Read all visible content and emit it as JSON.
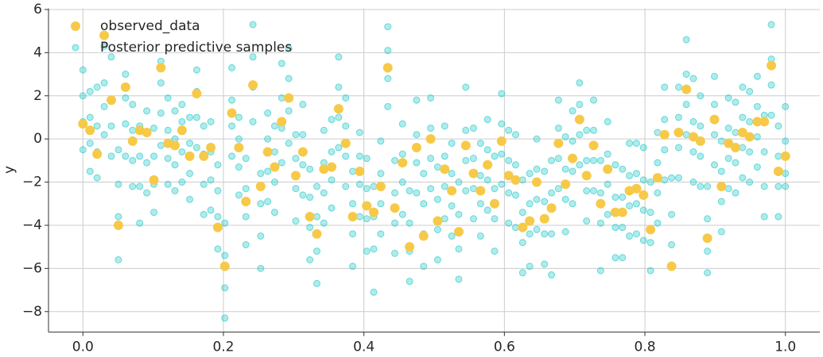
{
  "chart_data": {
    "type": "scatter",
    "ylabel": "y",
    "xlim": [
      -0.049,
      1.049
    ],
    "ylim": [
      -8.95,
      6.05
    ],
    "xticks": [
      {
        "value": 0,
        "label": "0.0"
      },
      0.2,
      0.4,
      0.6,
      0.8,
      {
        "value": 1,
        "label": "1.0"
      }
    ],
    "yticks": [
      {
        "value": -8,
        "label": "−8"
      },
      {
        "value": -6,
        "label": "−6"
      },
      {
        "value": -4,
        "label": "−4"
      },
      {
        "value": -2,
        "label": "−2"
      },
      0,
      2,
      4,
      6
    ],
    "grid": true,
    "legend": "upper left",
    "x": [
      0,
      0.0101,
      0.0202,
      0.0303,
      0.0404,
      0.0505,
      0.0606,
      0.0707,
      0.0808,
      0.0909,
      0.101,
      0.111,
      0.121,
      0.131,
      0.141,
      0.152,
      0.162,
      0.172,
      0.182,
      0.192,
      0.202,
      0.212,
      0.222,
      0.232,
      0.242,
      0.253,
      0.263,
      0.273,
      0.283,
      0.293,
      0.303,
      0.313,
      0.323,
      0.333,
      0.343,
      0.354,
      0.364,
      0.374,
      0.384,
      0.394,
      0.404,
      0.414,
      0.424,
      0.434,
      0.444,
      0.455,
      0.465,
      0.475,
      0.485,
      0.495,
      0.505,
      0.515,
      0.525,
      0.535,
      0.545,
      0.556,
      0.566,
      0.576,
      0.586,
      0.596,
      0.606,
      0.616,
      0.626,
      0.636,
      0.646,
      0.657,
      0.667,
      0.677,
      0.687,
      0.697,
      0.707,
      0.717,
      0.727,
      0.737,
      0.747,
      0.758,
      0.768,
      0.778,
      0.788,
      0.798,
      0.808,
      0.818,
      0.828,
      0.838,
      0.848,
      0.859,
      0.869,
      0.879,
      0.889,
      0.899,
      0.909,
      0.919,
      0.929,
      0.939,
      0.949,
      0.96,
      0.97,
      0.98,
      0.99,
      1
    ],
    "series": [
      {
        "name": "observed_data",
        "color": "#f7c948",
        "values": [
          0.7,
          0.4,
          -0.7,
          4.8,
          1.8,
          -4.0,
          2.4,
          -0.1,
          0.4,
          0.3,
          -1.9,
          3.3,
          -0.2,
          -0.3,
          0.4,
          -0.8,
          2.1,
          -0.8,
          -0.4,
          -4.1,
          -5.9,
          1.2,
          -0.4,
          -2.9,
          2.5,
          -2.2,
          -0.6,
          -1.3,
          0.8,
          1.9,
          -1.7,
          -0.6,
          -3.6,
          -4.4,
          -1.4,
          -1.3,
          1.4,
          -0.2,
          -3.6,
          -1.5,
          -3.1,
          -3.4,
          -2.2,
          3.3,
          -3.2,
          -1.1,
          -5.0,
          -0.4,
          -4.5,
          0,
          -3.8,
          -1.4,
          -2.4,
          -4.3,
          -0.3,
          -1.6,
          -2.4,
          -1.2,
          -3.0,
          -0.1,
          -1.7,
          -1.9,
          -4.1,
          -3.8,
          -2.0,
          -3.7,
          -3.2,
          -0.2,
          -2.1,
          -0.9,
          0.9,
          -1.7,
          -0.3,
          -3.0,
          -1.4,
          -3.4,
          -3.4,
          -2.4,
          -2.3,
          -2.6,
          -4.2,
          -1.8,
          0.2,
          -5.9,
          0.3,
          2.3,
          0.1,
          -0.1,
          -4.6,
          0.9,
          -2.2,
          -0.2,
          -0.4,
          0.3,
          0.1,
          0.8,
          0.8,
          3.4,
          -1.5,
          -0.8
        ]
      },
      {
        "name": "Posterior predictive samples",
        "color": "#1cc6c6",
        "values": [
          [
            -0.5,
            0.8,
            2,
            3.2
          ],
          [
            -1.5,
            -0.2,
            1,
            2.2
          ],
          [
            -1.8,
            -0.6,
            0.6,
            2.4
          ],
          [
            0.2,
            1.5,
            2.6,
            4.3
          ],
          [
            -0.8,
            0.6,
            1.8,
            3.8
          ],
          [
            -5.6,
            -3.6,
            -2.1,
            -0.5
          ],
          [
            -0.8,
            0.7,
            1.9,
            3
          ],
          [
            -2.2,
            -1,
            0.4,
            1.6
          ],
          [
            -3.9,
            -2.2,
            -0.8,
            0.6
          ],
          [
            -2.5,
            -1.1,
            0.3,
            1.3
          ],
          [
            -3.4,
            -2.1,
            -0.8,
            0.5
          ],
          [
            -0.3,
            1.2,
            2.6,
            3.6
          ],
          [
            -2.1,
            -0.9,
            0.4,
            1.9
          ],
          [
            -2.4,
            -1.2,
            0,
            1.3
          ],
          [
            -2,
            -0.6,
            0.8,
            1.6
          ],
          [
            -2.8,
            -1.6,
            -0.2,
            1
          ],
          [
            -0.4,
            1,
            2.2,
            3.2
          ],
          [
            -3.5,
            -2.1,
            -0.7,
            0.6
          ],
          [
            -3.3,
            -1.9,
            -0.6,
            0.8
          ],
          [
            -5.1,
            -3.6,
            -2.4,
            -1.2
          ],
          [
            -8.3,
            -6.9,
            -5.4,
            -3.9
          ],
          [
            -0.8,
            0.6,
            1.8,
            3.3
          ],
          [
            -2.6,
            -1.3,
            0,
            1
          ],
          [
            -4.9,
            -3.6,
            -2.3,
            -0.9
          ],
          [
            0.8,
            2.4,
            3.8,
            5.3
          ],
          [
            -6,
            -4.5,
            -3,
            -1.6
          ],
          [
            -2.9,
            -1.5,
            0,
            1.2
          ],
          [
            -3.4,
            -2,
            -0.6,
            0.6
          ],
          [
            -1.1,
            0.5,
            1.9,
            3.5
          ],
          [
            -0.2,
            1.3,
            2.8,
            4.2
          ],
          [
            -3.8,
            -2.3,
            -0.9,
            0.2
          ],
          [
            -2.6,
            -1.2,
            0.2,
            1.6
          ],
          [
            -5.6,
            -4.1,
            -2.7,
            -1.4
          ],
          [
            -6.7,
            -5.2,
            -3.6,
            -2.2
          ],
          [
            -3.9,
            -2.5,
            -1.1,
            0.4
          ],
          [
            -3.2,
            -1.9,
            -0.6,
            0.9
          ],
          [
            -0.4,
            1,
            2.4,
            3.8
          ],
          [
            -2.2,
            -0.8,
            0.6,
            1.9
          ],
          [
            -5.9,
            -4.4,
            -3,
            -1.5
          ],
          [
            -3.6,
            -2.1,
            -0.8,
            0.3
          ],
          [
            -5.2,
            -3.7,
            -2.3,
            -0.9
          ],
          [
            -7.1,
            -5.1,
            -3.6,
            -2.2
          ],
          [
            -4.4,
            -3,
            -1.6,
            -0.1
          ],
          [
            1.5,
            2.8,
            4.1,
            5.2
          ],
          [
            -5.3,
            -3.9,
            -2.5,
            -1
          ],
          [
            -3.5,
            -2,
            -0.7,
            0.7
          ],
          [
            -6.6,
            -5.2,
            -3.9,
            -2.4
          ],
          [
            -2.5,
            -1.1,
            0.2,
            1.8
          ],
          [
            -5.9,
            -4.4,
            -3,
            -1.6
          ],
          [
            -2.3,
            -0.9,
            0.5,
            1.9
          ],
          [
            -5.6,
            -4.2,
            -2.8,
            -1.3
          ],
          [
            -3.7,
            -2.2,
            -0.8,
            0.6
          ],
          [
            -4.5,
            -3.1,
            -1.6,
            -0.2
          ],
          [
            -6.5,
            -5.1,
            -3.5,
            -2
          ],
          [
            -2.4,
            -1,
            0.4,
            2.4
          ],
          [
            -3.7,
            -2.3,
            -0.9,
            0.5
          ],
          [
            -4.5,
            -3,
            -1.7,
            -0.2
          ],
          [
            -3.3,
            -1.9,
            -0.5,
            0.9
          ],
          [
            -5.2,
            -3.7,
            -2.3,
            -0.8
          ],
          [
            -2.1,
            -0.7,
            0.7,
            2.1
          ],
          [
            -3.9,
            -2.5,
            -1,
            0.4
          ],
          [
            -4.1,
            -2.6,
            -1.2,
            0.2
          ],
          [
            -6.2,
            -4.8,
            -3.4,
            -1.9
          ],
          [
            -5.9,
            -4.4,
            -3,
            -1.6
          ],
          [
            -4.2,
            -2.8,
            -1.4,
            0
          ],
          [
            -5.8,
            -4.4,
            -2.9,
            -1.5
          ],
          [
            -6.3,
            -4.4,
            -2.5,
            -1
          ],
          [
            -2.3,
            -0.9,
            0.5,
            1.8
          ],
          [
            -4.3,
            -2.8,
            -1.4,
            0.1
          ],
          [
            -3,
            -1.5,
            -0.1,
            1.3
          ],
          [
            -1.2,
            0.2,
            1.6,
            2.6
          ],
          [
            -3.8,
            -2.4,
            -1,
            0.4
          ],
          [
            -2.4,
            -1,
            0.4,
            1.8
          ],
          [
            -6.1,
            -3.9,
            -2.5,
            -1
          ],
          [
            -3.5,
            -2.1,
            -0.7,
            0.8
          ],
          [
            -5.5,
            -4.1,
            -2.7,
            -1.2
          ],
          [
            -5.5,
            -4.1,
            -2.7,
            -1.4
          ],
          [
            -4.5,
            -3.1,
            -1.7,
            -0.2
          ],
          [
            -4.4,
            -3,
            -1.6,
            -0.2
          ],
          [
            -4.7,
            -3.3,
            -1.9,
            -0.4
          ],
          [
            -6.1,
            -4.8,
            -3.4,
            -2
          ],
          [
            -3.9,
            -2.5,
            -1.1,
            0.3
          ],
          [
            -1.9,
            -0.5,
            0.9,
            2.4
          ],
          [
            -5.9,
            -4.9,
            -3.5,
            -1.8
          ],
          [
            -1.8,
            -0.4,
            1,
            2.4
          ],
          [
            0.2,
            1.6,
            3,
            4.6
          ],
          [
            -2,
            -0.6,
            0.8,
            2.8
          ],
          [
            -2.2,
            -0.8,
            0.6,
            2
          ],
          [
            -6.2,
            -5.2,
            -3.7,
            -2.2
          ],
          [
            -1.2,
            0.2,
            1.6,
            2.9
          ],
          [
            -4.3,
            -2.9,
            -1.5,
            -0.1
          ],
          [
            -2.3,
            -0.9,
            0.5,
            1.9
          ],
          [
            -2.5,
            -1.1,
            0.3,
            1.7
          ],
          [
            -1.8,
            -0.4,
            1,
            2.4
          ],
          [
            -2,
            -0.6,
            0.8,
            2.2
          ],
          [
            -1.3,
            0.1,
            1.5,
            2.9
          ],
          [
            -3.6,
            -2.2,
            -0.6,
            1.1
          ],
          [
            1.1,
            2.5,
            3.7,
            5.3
          ],
          [
            -3.6,
            -2.2,
            -0.8,
            0.6
          ],
          [
            -2.2,
            -1.6,
            -0.1,
            1.5
          ]
        ]
      }
    ]
  }
}
